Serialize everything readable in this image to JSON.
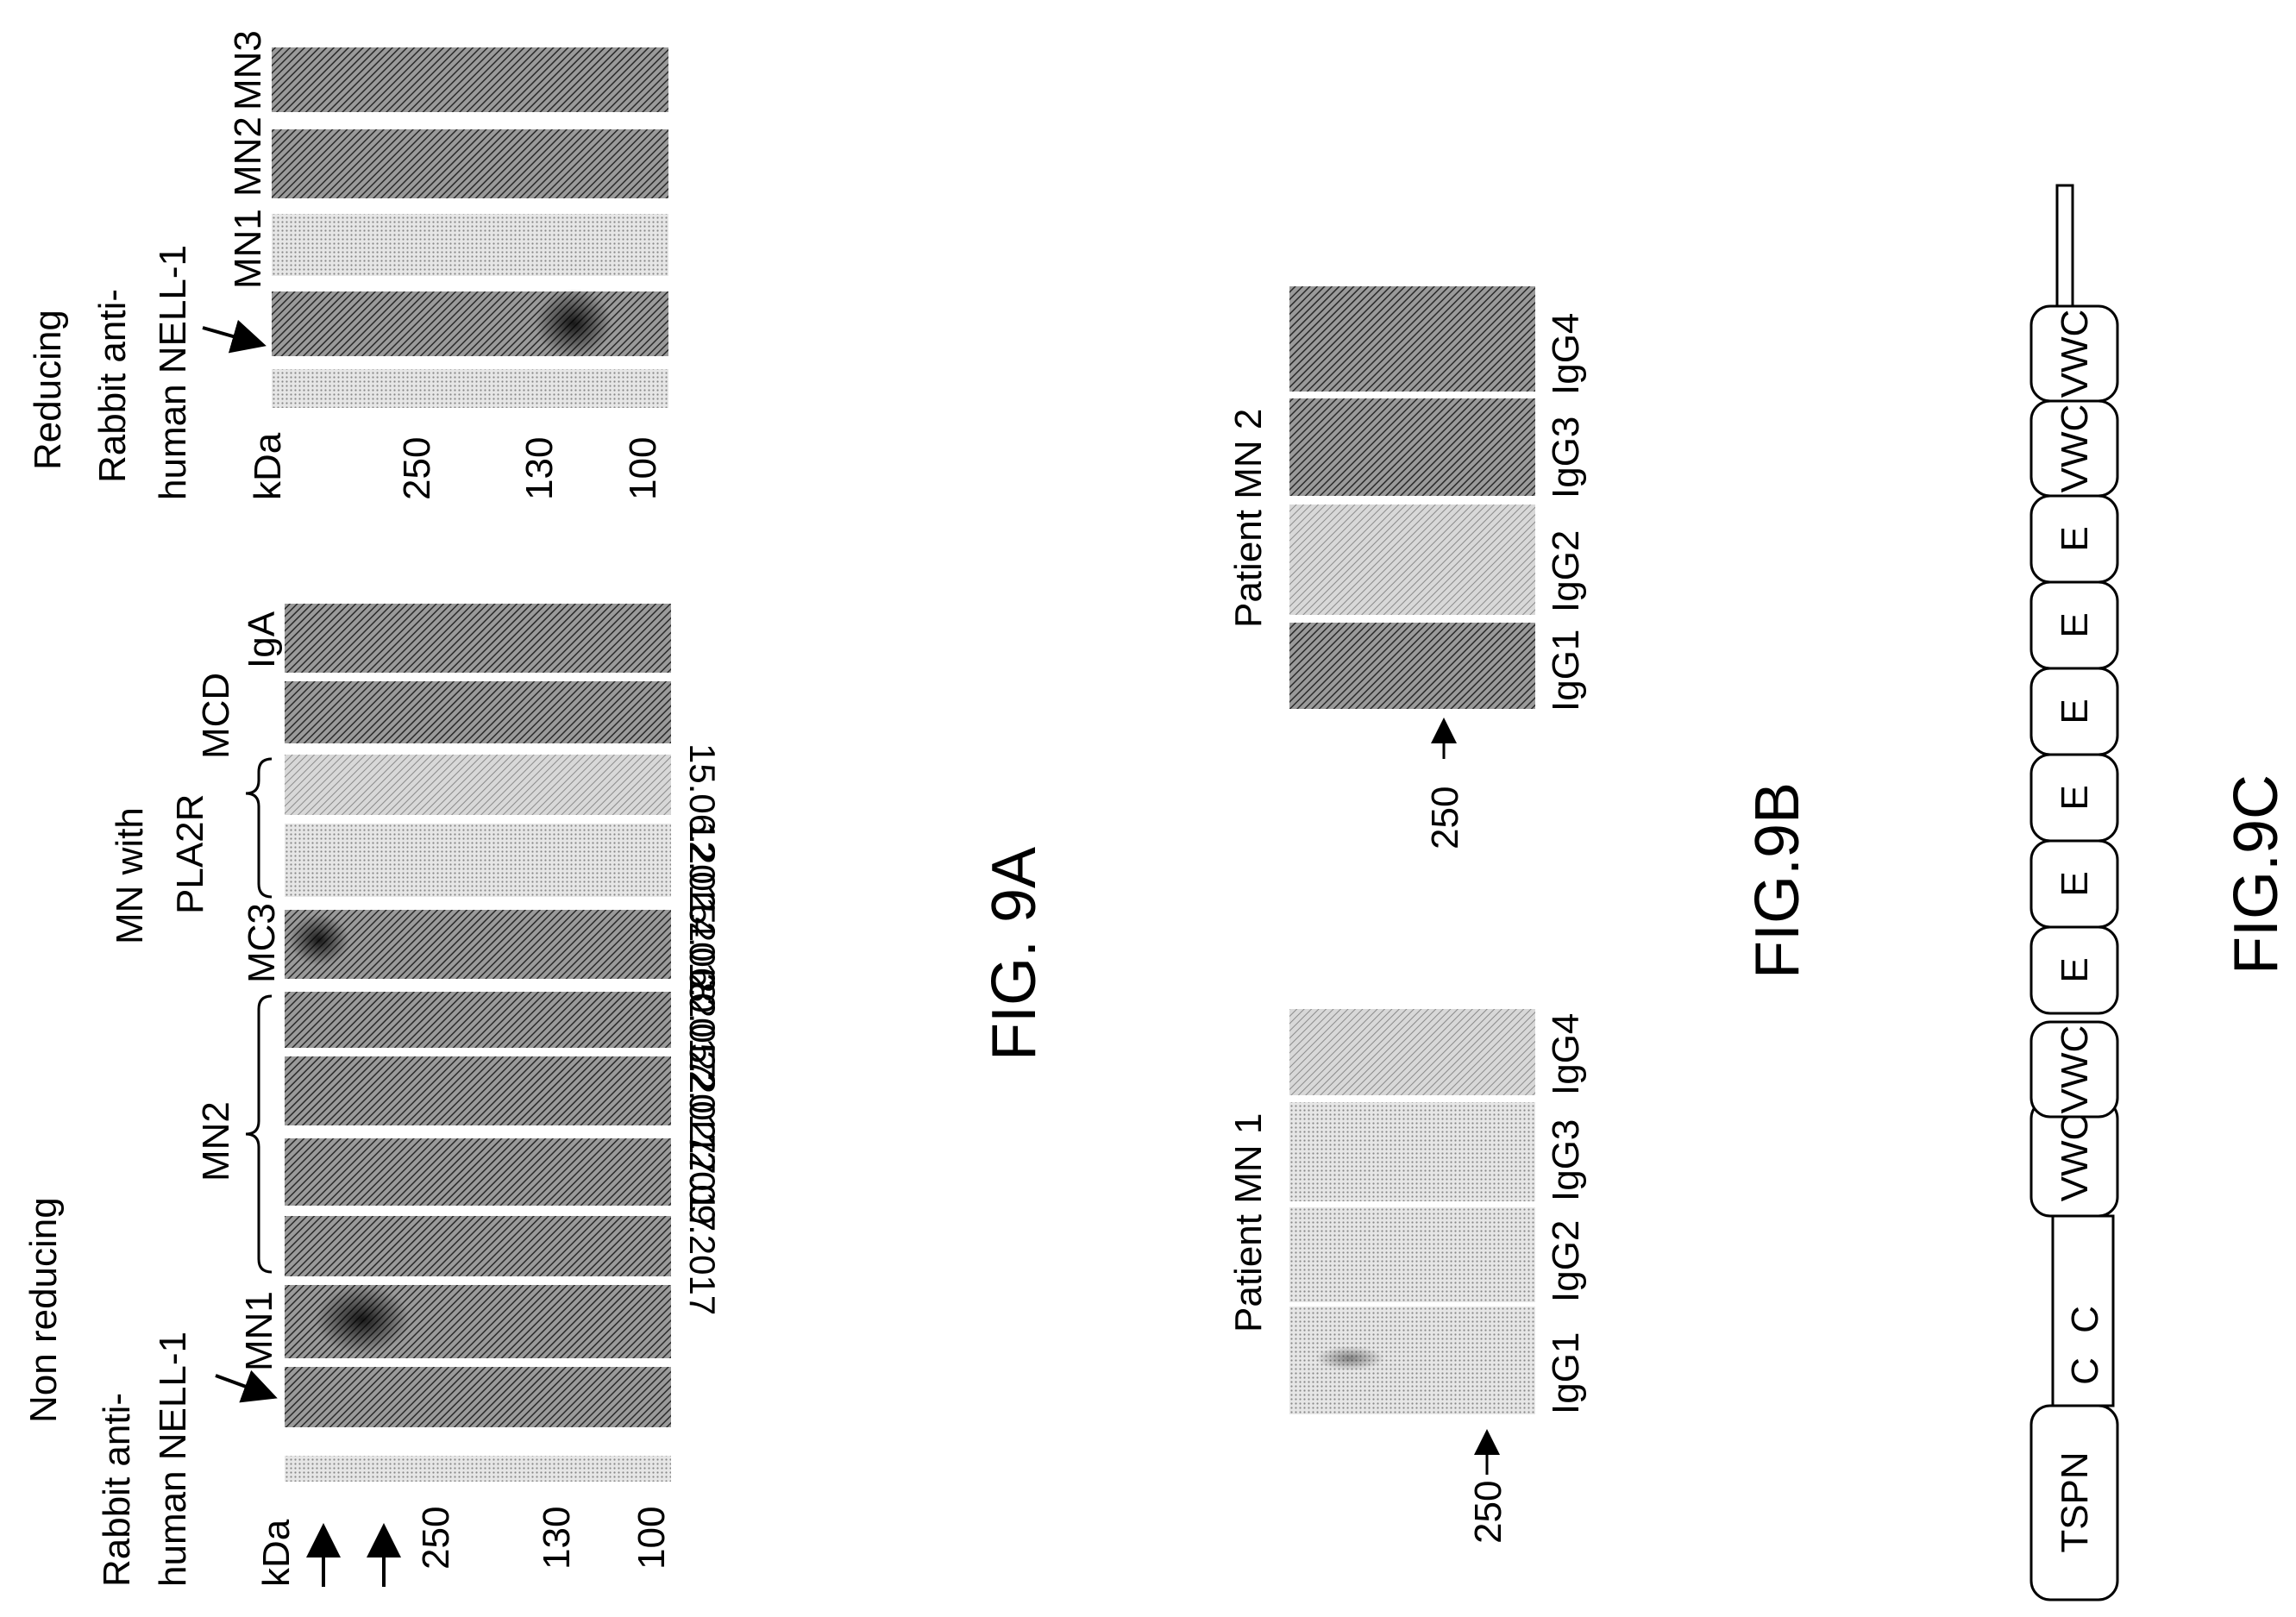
{
  "fig9a": {
    "caption": "FIG. 9A",
    "non_reducing": {
      "condition_label": "Non reducing",
      "antibody_line1": "Rabbit anti-",
      "antibody_line2": "human NELL-1",
      "kda_label": "kDa",
      "markers": [
        "250",
        "130",
        "100"
      ],
      "group_labels": {
        "mn1": "MN1",
        "mn2": "MN2",
        "mc3": "MC3",
        "mn_pla2r_line1": "MN with",
        "mn_pla2r_line2": "PLA2R",
        "mcd": "MCD",
        "iga": "IgA"
      },
      "dates": [
        "17.09.2017",
        "22.02.2017",
        "20.05.2017",
        "14.06.2017",
        "12.02.2018",
        "15.06.2015"
      ]
    },
    "reducing": {
      "condition_label": "Reducing",
      "antibody_line1": "Rabbit anti-",
      "antibody_line2": "human NELL-1",
      "kda_label": "kDa",
      "markers": [
        "250",
        "130",
        "100"
      ],
      "lane_labels": [
        "MN1",
        "MN2",
        "MN3"
      ]
    }
  },
  "fig9b": {
    "caption": "FIG.9B",
    "patients": [
      {
        "label": "Patient MN 1",
        "lanes": [
          "IgG1",
          "IgG2",
          "IgG3",
          "IgG4"
        ],
        "marker": "250"
      },
      {
        "label": "Patient MN 2",
        "lanes": [
          "IgG1",
          "IgG2",
          "IgG3",
          "IgG4"
        ],
        "marker": "250"
      }
    ]
  },
  "fig9c": {
    "caption": "FIG.9C",
    "domains": [
      "TSPN",
      "C",
      "C",
      "VWC",
      "VWC",
      "E",
      "E",
      "E",
      "E",
      "E",
      "E",
      "VWC",
      "VWC"
    ]
  }
}
